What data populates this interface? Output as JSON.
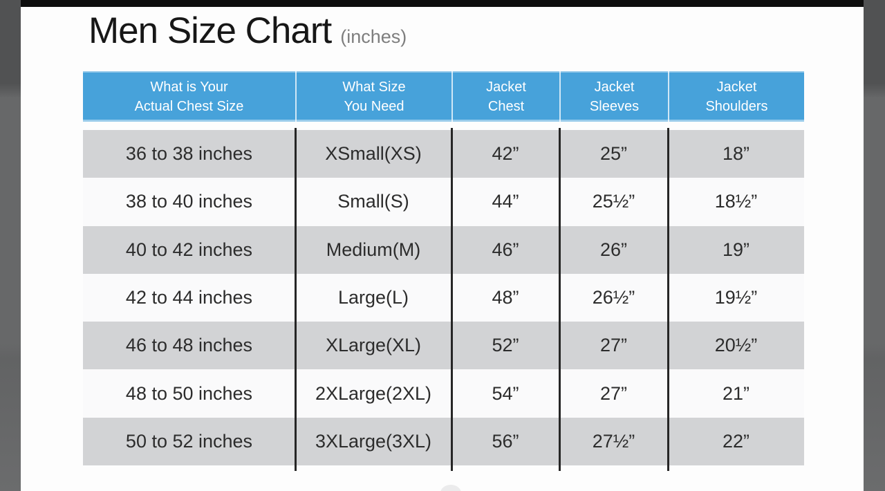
{
  "chart_data": {
    "type": "table",
    "title": "Men Size Chart",
    "units_label": "(inches)",
    "columns": [
      {
        "line1": "What is Your",
        "line2": "Actual Chest Size"
      },
      {
        "line1": "What Size",
        "line2": "You Need"
      },
      {
        "line1": "Jacket",
        "line2": "Chest"
      },
      {
        "line1": "Jacket",
        "line2": "Sleeves"
      },
      {
        "line1": "Jacket",
        "line2": "Shoulders"
      }
    ],
    "rows": [
      [
        "36 to 38 inches",
        "XSmall(XS)",
        "42”",
        "25”",
        "18”"
      ],
      [
        "38 to 40 inches",
        "Small(S)",
        "44”",
        "25½”",
        "18½”"
      ],
      [
        "40 to 42 inches",
        "Medium(M)",
        "46”",
        "26”",
        "19”"
      ],
      [
        "42 to 44 inches",
        "Large(L)",
        "48”",
        "26½”",
        "19½”"
      ],
      [
        "46 to 48 inches",
        "XLarge(XL)",
        "52”",
        "27”",
        "20½”"
      ],
      [
        "48 to 50 inches",
        "2XLarge(2XL)",
        "54”",
        "27”",
        "21”"
      ],
      [
        "50 to 52 inches",
        "3XLarge(3XL)",
        "56”",
        "27½”",
        "22”"
      ]
    ],
    "layout": {
      "header_rows": 1,
      "body_rows": 7,
      "row_striping": "alternating starting gray",
      "legend": "none",
      "grid": "vertical column dividers only"
    }
  },
  "colors": {
    "header_bg": "#47a2da",
    "header_text": "#ffffff",
    "row_stripe_bg": "#d2d3d5",
    "row_plain_bg": "#fafafb",
    "body_text": "#2c2c2c",
    "column_divider": "#262626",
    "title_text": "#171717",
    "title_suffix_text": "#7e7e7e",
    "side_strip": "#676869",
    "top_bar": "#0e0e0e",
    "page_bg": "#fdfdfd"
  }
}
